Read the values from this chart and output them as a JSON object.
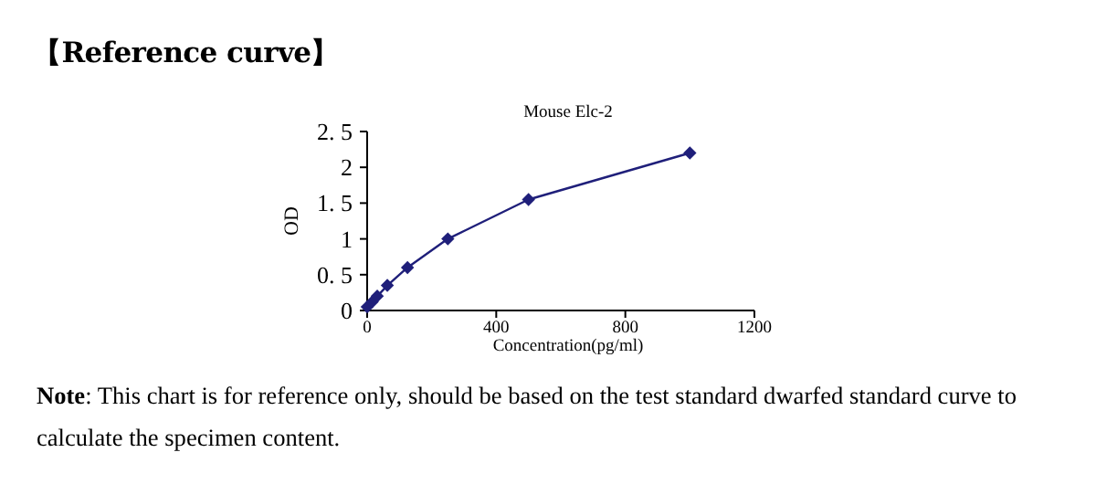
{
  "chart_data": {
    "type": "line",
    "title": "Mouse Elc-2",
    "xlabel": "Concentration(pg/ml)",
    "ylabel": "OD",
    "x": [
      0,
      15.6,
      31.25,
      62.5,
      125,
      250,
      500,
      1000
    ],
    "series": [
      {
        "color": "#1f1f7a",
        "values": [
          0.05,
          0.12,
          0.2,
          0.35,
          0.6,
          1.0,
          1.55,
          2.2
        ]
      }
    ],
    "marker": "diamond",
    "line_style": "solid",
    "xlim": [
      0,
      1200
    ],
    "xticks": [
      0,
      400,
      800,
      1200
    ],
    "ylim": [
      0,
      2.5
    ],
    "yticks": [
      0,
      {
        "value": 0.5,
        "label": "0. 5"
      },
      1,
      {
        "value": 1.5,
        "label": "1. 5"
      },
      2,
      {
        "value": 2.5,
        "label": "2. 5"
      }
    ],
    "annotations": [
      "【Reference curve】",
      "**Note**: This chart is for reference only, should be based on the test standard dwarfed standard curve to calculate the specimen content."
    ]
  }
}
